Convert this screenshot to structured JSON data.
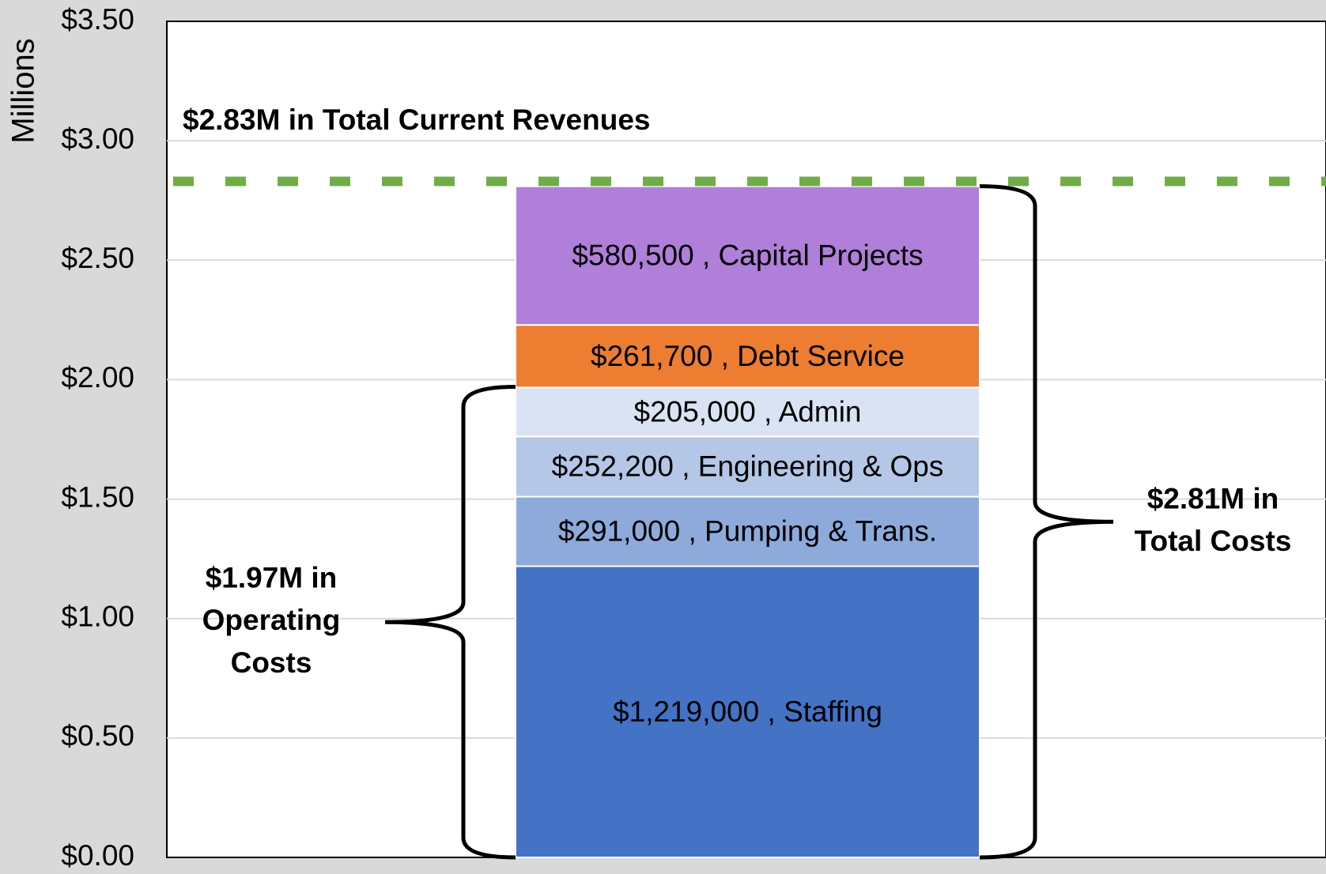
{
  "chart_data": {
    "type": "stacked_bar",
    "y_axis_label": "Millions",
    "ylim": [
      0,
      3.5
    ],
    "yticks": [
      {
        "value": 0,
        "label": "$0.00"
      },
      {
        "value": 0.5,
        "label": "$0.50"
      },
      {
        "value": 1,
        "label": "$1.00"
      },
      {
        "value": 1.5,
        "label": "$1.50"
      },
      {
        "value": 2,
        "label": "$2.00"
      },
      {
        "value": 2.5,
        "label": "$2.50"
      },
      {
        "value": 3,
        "label": "$3.00"
      },
      {
        "value": 3.5,
        "label": "$3.50"
      }
    ],
    "grid": true,
    "series": [
      {
        "color": "#4472c4",
        "values": [
          1.219
        ],
        "value_labels": [
          "$1,219,000 , Staffing"
        ]
      },
      {
        "color": "#8eaadb",
        "values": [
          0.291
        ],
        "value_labels": [
          "$291,000 , Pumping & Trans."
        ]
      },
      {
        "color": "#b4c7e7",
        "values": [
          0.2522
        ],
        "value_labels": [
          "$252,200 , Engineering & Ops"
        ]
      },
      {
        "color": "#dae3f3",
        "values": [
          0.205
        ],
        "value_labels": [
          "$205,000 , Admin"
        ]
      },
      {
        "color": "#ed7d31",
        "values": [
          0.2617
        ],
        "value_labels": [
          "$261,700 , Debt Service"
        ]
      },
      {
        "color": "#b07fda",
        "values": [
          0.5805
        ],
        "value_labels": [
          "$580,500 , Capital Projects"
        ]
      }
    ],
    "reference_line": {
      "value": 2.83,
      "color": "#70ad47",
      "label": "$2.83M in Total Current Revenues"
    },
    "annotations": [
      {
        "text": "$1.97M in Operating Costs",
        "value": 1.97,
        "side": "left"
      },
      {
        "text": "$2.81M in Total Costs",
        "value": 2.81,
        "side": "right"
      }
    ]
  }
}
